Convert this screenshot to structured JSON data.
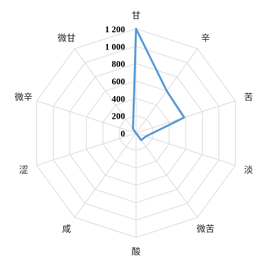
{
  "chart_data": {
    "type": "radar",
    "categories": [
      "甘",
      "辛",
      "苦",
      "淡",
      "微苦",
      "酸",
      "咸",
      "涩",
      "微辛",
      "微甘"
    ],
    "series": [
      {
        "values": [
          1200,
          600,
          580,
          120,
          100,
          0,
          0,
          0,
          0,
          60
        ],
        "color": "#5b9bd5"
      }
    ],
    "rlim": [
      0,
      1200
    ],
    "ticks": [
      0,
      200,
      400,
      600,
      800,
      1000,
      1200
    ],
    "tick_labels": [
      "0",
      "200",
      "400",
      "600",
      "800",
      "1 000",
      "1 200"
    ],
    "grid": true,
    "legend": "none"
  }
}
